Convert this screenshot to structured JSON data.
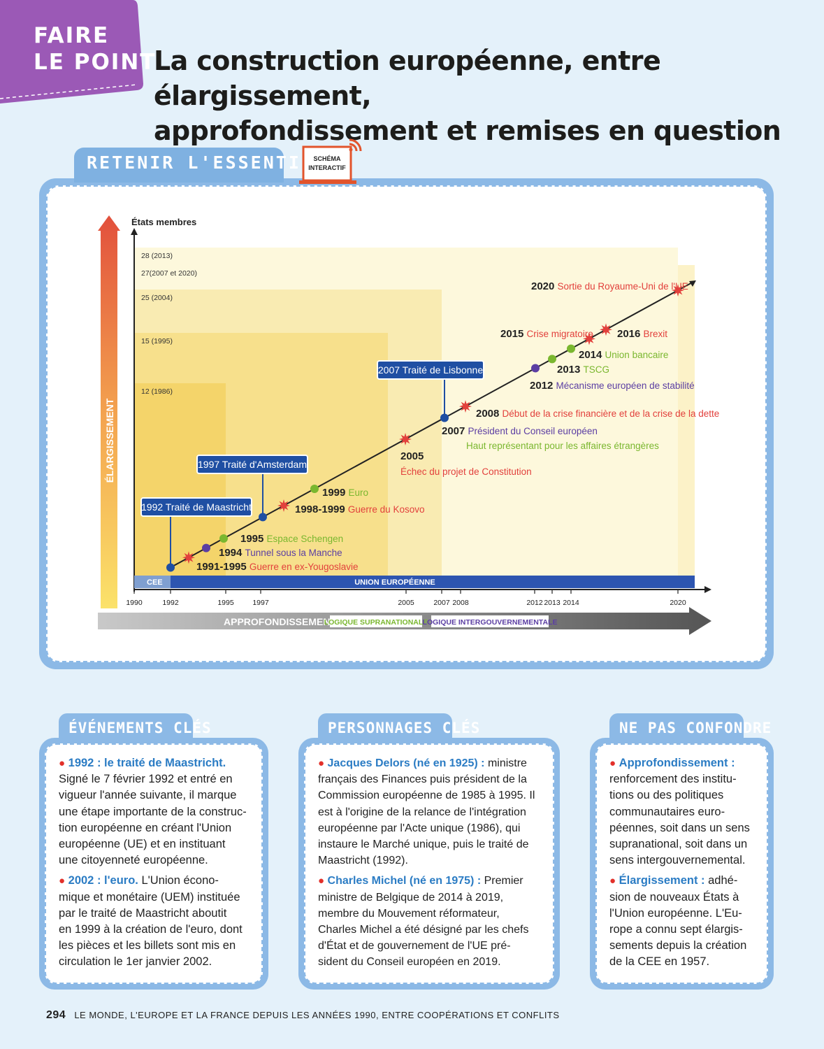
{
  "header": {
    "tag": "FAIRE LE POINT",
    "tag_line1": "FAIRE",
    "tag_line2": "LE POINT",
    "title_line1": "La construction européenne, entre élargissement,",
    "title_line2": "approfondissement et remises en question"
  },
  "retenir": {
    "tab_label": "RETENIR L'ESSENTIEL",
    "interactive_line1": "SCHÉMA",
    "interactive_line2": "INTERACTIF"
  },
  "diagram": {
    "y_axis_title": "États membres",
    "vertical_label": "ÉLARGISSEMENT",
    "member_levels": [
      {
        "label": "28 (2013)",
        "from": 2013,
        "to": 2020
      },
      {
        "label": "27(2007 et 2020)",
        "from": 2007,
        "to": 2021
      },
      {
        "label": "25 (2004)",
        "from": 2004,
        "to": 2007
      },
      {
        "label": "15 (1995)",
        "from": 1995,
        "to": 2004
      },
      {
        "label": "12 (1986)",
        "from": 1986,
        "to": 1995
      }
    ],
    "x_ticks": [
      "1990",
      "1992",
      "1995",
      "1997",
      "2005",
      "2007",
      "2008",
      "2012",
      "2013",
      "2014",
      "2020"
    ],
    "band_cee": "CEE",
    "band_ue": "UNION EUROPÉENNE",
    "bottom_arrow_label": "APPROFONDISSEMENT :",
    "legend_supra": "LOGIQUE SUPRANATIONALE",
    "legend_inter": "LOGIQUE INTERGOUVERNEMENTALE",
    "treaties": [
      {
        "year": "1992",
        "label": "Traité de Maastricht"
      },
      {
        "year": "1997",
        "label": "Traité d'Amsterdam"
      },
      {
        "year": "2007",
        "label": "Traité de Lisbonne"
      }
    ],
    "events": [
      {
        "year": "1991-1995",
        "label": "Guerre en ex-Yougoslavie",
        "kind": "crisis"
      },
      {
        "year": "1994",
        "label": "Tunnel sous la Manche",
        "kind": "inter"
      },
      {
        "year": "1995",
        "label": "Espace Schengen",
        "kind": "supra"
      },
      {
        "year": "1998-1999",
        "label": "Guerre du Kosovo",
        "kind": "crisis"
      },
      {
        "year": "1999",
        "label": "Euro",
        "kind": "supra"
      },
      {
        "year": "2005",
        "label": "Échec du projet de Constitution",
        "kind": "crisis"
      },
      {
        "year": "2007",
        "label": "Président du Conseil européen",
        "kind": "inter"
      },
      {
        "year": "",
        "label": "Haut représentant pour les affaires étrangères",
        "kind": "supra"
      },
      {
        "year": "2008",
        "label": "Début de la crise financière et de la crise de la dette",
        "kind": "crisis"
      },
      {
        "year": "2012",
        "label": "Mécanisme européen de stabilité",
        "kind": "inter"
      },
      {
        "year": "2013",
        "label": "TSCG",
        "kind": "supra"
      },
      {
        "year": "2014",
        "label": "Union bancaire",
        "kind": "supra"
      },
      {
        "year": "2015",
        "label": "Crise migratoire",
        "kind": "crisis"
      },
      {
        "year": "2016",
        "label": "Brexit",
        "kind": "crisis"
      },
      {
        "year": "2020",
        "label": "Sortie du Royaume-Uni de l'UE",
        "kind": "crisis"
      }
    ],
    "colors": {
      "crisis": "#e2403c",
      "supra": "#7ab72f",
      "inter": "#5b3ea3",
      "treaty": "#1f4fa3",
      "ue_band": "#2d55b0"
    }
  },
  "evenements": {
    "tab_label": "ÉVÉNEMENTS CLÉS",
    "items": [
      {
        "kw": "1992 : le traité de Maastricht.",
        "text_lines": [
          "Signé le 7 février 1992 et entré en",
          "vigueur l'année suivante, il marque",
          "une étape importante de la construc-",
          "tion européenne en créant l'Union",
          "européenne (UE) et en instituant",
          "une citoyenneté européenne."
        ]
      },
      {
        "kw": "2002 : l'euro.",
        "text_lines": [
          " L'Union écono-",
          "mique et monétaire (UEM) instituée",
          "par le traité de Maastricht aboutit",
          "en 1999 à la création de l'euro, dont",
          "les pièces et les billets sont mis en",
          "circulation le 1er janvier 2002."
        ]
      }
    ]
  },
  "personnages": {
    "tab_label": "PERSONNAGES CLÉS",
    "items": [
      {
        "kw": "Jacques Delors (né en 1925) :",
        "text_lines": [
          " ministre",
          "français des Finances puis président de la",
          "Commission européenne de 1985 à 1995. Il",
          "est à l'origine de la relance de l'intégration",
          "européenne par l'Acte unique (1986), qui",
          "instaure le Marché unique, puis le traité de",
          "Maastricht (1992)."
        ]
      },
      {
        "kw": "Charles Michel (né en 1975) :",
        "text_lines": [
          " Premier",
          "ministre de Belgique de 2014 à 2019,",
          "membre du Mouvement réformateur,",
          "Charles Michel a été désigné par les chefs",
          "d'État et de gouvernement de l'UE pré-",
          "sident du Conseil européen en 2019."
        ]
      }
    ]
  },
  "confondre": {
    "tab_label": "NE PAS CONFONDRE",
    "items": [
      {
        "kw": "Approfondissement :",
        "text_lines": [
          "renforcement des institu-",
          "tions ou des politiques",
          "communautaires euro-",
          "péennes, soit dans un sens",
          "supranational, soit dans un",
          "sens intergouvernemental."
        ]
      },
      {
        "kw": "Élargissement :",
        "text_lines": [
          " adhé-",
          "sion de nouveaux États à",
          "l'Union européenne. L'Eu-",
          "rope a connu sept élargis-",
          "sements depuis la création",
          "de la CEE en 1957."
        ]
      }
    ]
  },
  "footer": {
    "page_number": "294",
    "text": "LE MONDE, L'EUROPE ET LA FRANCE DEPUIS LES ANNÉES 1990, ENTRE COOPÉRATIONS ET CONFLITS"
  }
}
